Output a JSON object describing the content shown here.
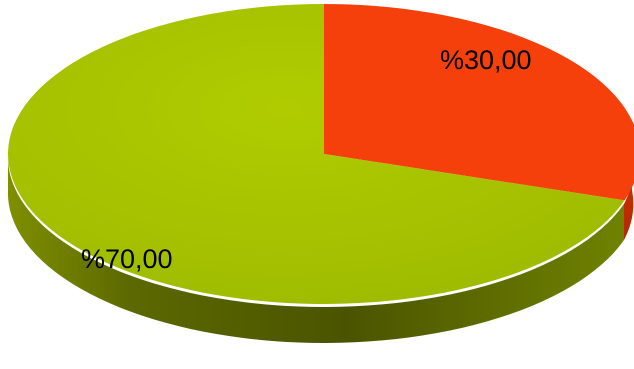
{
  "chart_data": {
    "type": "pie",
    "style": "3d",
    "title": "",
    "legend": "none",
    "slices": [
      {
        "label": "%30,00",
        "value": 30,
        "color": "#f5400c"
      },
      {
        "label": "%70,00",
        "value": 70,
        "color": "#a8c400"
      }
    ]
  }
}
